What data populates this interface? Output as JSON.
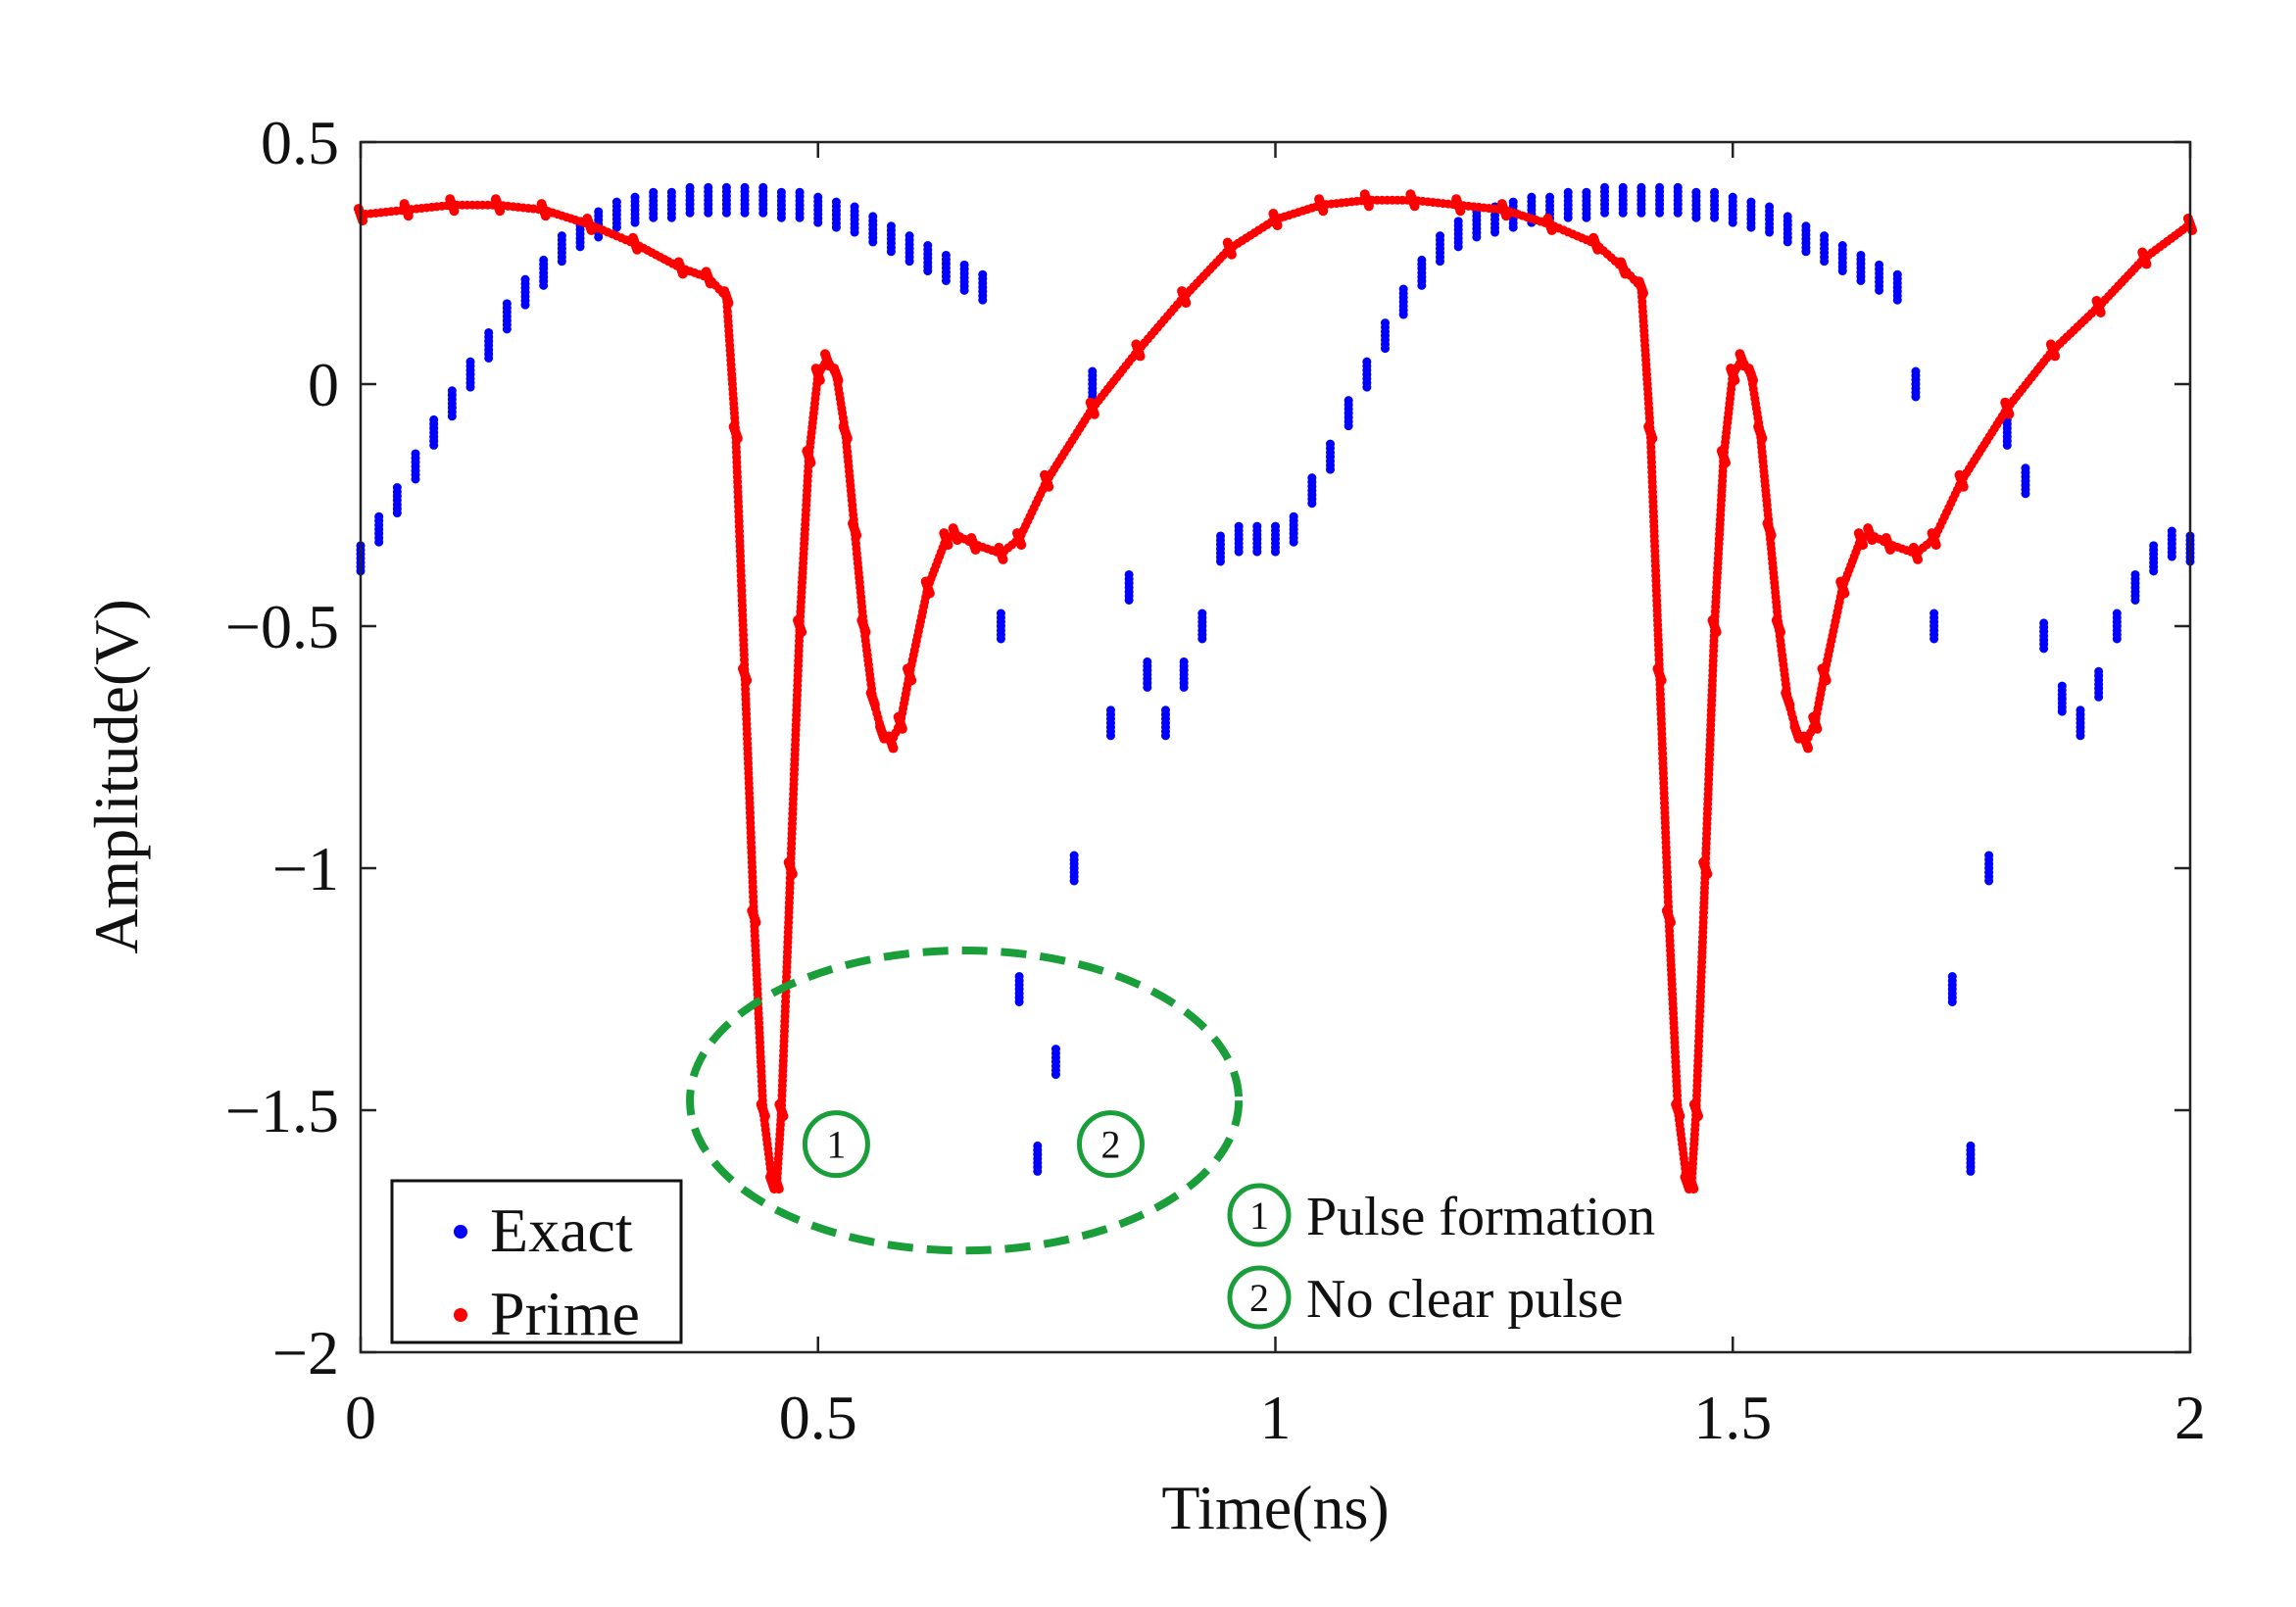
{
  "chart_data": {
    "type": "scatter",
    "title": "",
    "xlabel": "Time(ns)",
    "ylabel": "Amplitude(V)",
    "xlim": [
      0,
      2
    ],
    "ylim": [
      -2,
      0.5
    ],
    "xticks": [
      0,
      0.5,
      1,
      1.5,
      2
    ],
    "xtick_labels": [
      "0",
      "0.5",
      "1",
      "1.5",
      "2"
    ],
    "yticks": [
      0.5,
      0,
      -0.5,
      -1,
      -1.5,
      -2
    ],
    "ytick_labels": [
      "0.5",
      "0",
      "−0.5",
      "−1",
      "−1.5",
      "−2"
    ],
    "legend_position": "bottom-left",
    "series": [
      {
        "name": "Exact",
        "color": "#0000ff",
        "x": [
          0.0,
          0.02,
          0.04,
          0.06,
          0.08,
          0.1,
          0.12,
          0.14,
          0.16,
          0.18,
          0.2,
          0.22,
          0.24,
          0.26,
          0.28,
          0.3,
          0.32,
          0.34,
          0.36,
          0.38,
          0.4,
          0.42,
          0.44,
          0.46,
          0.48,
          0.5,
          0.52,
          0.54,
          0.56,
          0.58,
          0.6,
          0.62,
          0.64,
          0.66,
          0.68,
          0.7,
          0.72,
          0.74,
          0.76,
          0.78,
          0.8,
          0.82,
          0.84,
          0.86,
          0.88,
          0.9,
          0.92,
          0.94,
          0.96,
          0.98,
          1.0,
          1.02,
          1.04,
          1.06,
          1.08,
          1.1,
          1.12,
          1.14,
          1.16,
          1.18,
          1.2,
          1.22,
          1.24,
          1.26,
          1.28,
          1.3,
          1.32,
          1.34,
          1.36,
          1.38,
          1.4,
          1.42,
          1.44,
          1.46,
          1.48,
          1.5,
          1.52,
          1.54,
          1.56,
          1.58,
          1.6,
          1.62,
          1.64,
          1.66,
          1.68,
          1.7,
          1.72,
          1.74,
          1.76,
          1.78,
          1.8,
          1.82,
          1.84,
          1.86,
          1.88,
          1.9,
          1.92,
          1.94,
          1.96,
          1.98,
          2.0
        ],
        "y": [
          -0.36,
          -0.3,
          -0.24,
          -0.17,
          -0.1,
          -0.04,
          0.02,
          0.08,
          0.14,
          0.19,
          0.23,
          0.28,
          0.31,
          0.33,
          0.35,
          0.36,
          0.37,
          0.37,
          0.38,
          0.38,
          0.38,
          0.38,
          0.38,
          0.37,
          0.37,
          0.36,
          0.35,
          0.34,
          0.32,
          0.3,
          0.28,
          0.26,
          0.24,
          0.22,
          0.2,
          -0.5,
          -1.25,
          -1.6,
          -1.4,
          -1.0,
          0.0,
          -0.7,
          -0.42,
          -0.6,
          -0.7,
          -0.6,
          -0.5,
          -0.34,
          -0.32,
          -0.32,
          -0.32,
          -0.3,
          -0.22,
          -0.15,
          -0.06,
          0.02,
          0.1,
          0.17,
          0.23,
          0.28,
          0.31,
          0.33,
          0.34,
          0.35,
          0.36,
          0.36,
          0.37,
          0.37,
          0.38,
          0.38,
          0.38,
          0.38,
          0.38,
          0.37,
          0.37,
          0.36,
          0.35,
          0.34,
          0.32,
          0.3,
          0.28,
          0.26,
          0.24,
          0.22,
          0.2,
          0.0,
          -0.5,
          -1.25,
          -1.6,
          -1.0,
          -0.1,
          -0.2,
          -0.52,
          -0.65,
          -0.7,
          -0.62,
          -0.5,
          -0.42,
          -0.36,
          -0.33,
          -0.34
        ]
      },
      {
        "name": "Prime",
        "color": "#ff0000",
        "x": [
          0.0,
          0.05,
          0.1,
          0.15,
          0.2,
          0.25,
          0.3,
          0.35,
          0.38,
          0.4,
          0.41,
          0.42,
          0.43,
          0.44,
          0.45,
          0.455,
          0.46,
          0.47,
          0.48,
          0.49,
          0.5,
          0.51,
          0.52,
          0.53,
          0.54,
          0.55,
          0.56,
          0.57,
          0.58,
          0.59,
          0.6,
          0.62,
          0.64,
          0.65,
          0.67,
          0.7,
          0.72,
          0.75,
          0.8,
          0.85,
          0.9,
          0.95,
          1.0,
          1.05,
          1.1,
          1.15,
          1.2,
          1.25,
          1.3,
          1.35,
          1.38,
          1.4,
          1.41,
          1.42,
          1.43,
          1.44,
          1.45,
          1.455,
          1.46,
          1.47,
          1.48,
          1.49,
          1.5,
          1.51,
          1.52,
          1.53,
          1.54,
          1.55,
          1.56,
          1.57,
          1.58,
          1.59,
          1.6,
          1.62,
          1.64,
          1.65,
          1.67,
          1.7,
          1.72,
          1.75,
          1.8,
          1.85,
          1.9,
          1.95,
          2.0
        ],
        "y": [
          0.35,
          0.36,
          0.37,
          0.37,
          0.36,
          0.33,
          0.29,
          0.24,
          0.22,
          0.18,
          -0.1,
          -0.6,
          -1.1,
          -1.5,
          -1.65,
          -1.65,
          -1.5,
          -1.0,
          -0.5,
          -0.15,
          0.02,
          0.05,
          0.02,
          -0.1,
          -0.3,
          -0.5,
          -0.65,
          -0.72,
          -0.74,
          -0.7,
          -0.6,
          -0.42,
          -0.32,
          -0.31,
          -0.33,
          -0.35,
          -0.32,
          -0.2,
          -0.05,
          0.07,
          0.18,
          0.28,
          0.34,
          0.37,
          0.38,
          0.38,
          0.37,
          0.36,
          0.33,
          0.29,
          0.24,
          0.2,
          -0.1,
          -0.6,
          -1.1,
          -1.5,
          -1.65,
          -1.65,
          -1.5,
          -1.0,
          -0.5,
          -0.15,
          0.02,
          0.05,
          0.02,
          -0.1,
          -0.3,
          -0.5,
          -0.65,
          -0.72,
          -0.74,
          -0.7,
          -0.6,
          -0.42,
          -0.32,
          -0.31,
          -0.33,
          -0.35,
          -0.32,
          -0.2,
          -0.05,
          0.07,
          0.16,
          0.26,
          0.33
        ]
      }
    ],
    "annotations": [
      {
        "type": "ellipse",
        "color": "#1a9e3a",
        "center": [
          0.66,
          -1.48
        ],
        "radius_x": 0.3,
        "radius_y": 0.31
      },
      {
        "type": "circled-number",
        "label": "1",
        "at": [
          0.52,
          -1.57
        ]
      },
      {
        "type": "circled-number",
        "label": "2",
        "at": [
          0.82,
          -1.57
        ]
      }
    ],
    "notes": [
      {
        "marker": "1",
        "text": "Pulse formation"
      },
      {
        "marker": "2",
        "text": "No clear pulse"
      }
    ]
  }
}
